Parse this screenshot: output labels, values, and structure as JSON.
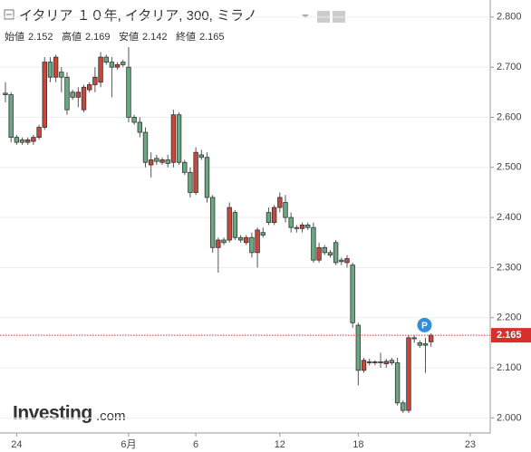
{
  "chart_data": {
    "type": "candlestick",
    "title": "イタリア １０年, イタリア, 300, ミラノ",
    "open_label": "始値",
    "high_label": "高値",
    "low_label": "安値",
    "close_label": "終値",
    "marker_label": "P",
    "logo": "Investing",
    "logo_suffix": ".com",
    "categories": [
      null,
      null,
      "24",
      null,
      null,
      null,
      null,
      null,
      null,
      null,
      null,
      null,
      null,
      null,
      null,
      null,
      null,
      null,
      null,
      null,
      null,
      null,
      "6月",
      null,
      null,
      null,
      null,
      null,
      null,
      null,
      null,
      null,
      null,
      null,
      "6",
      null,
      null,
      null,
      null,
      null,
      null,
      null,
      null,
      null,
      null,
      null,
      null,
      null,
      null,
      "12",
      null,
      null,
      null,
      null,
      null,
      null,
      null,
      null,
      null,
      null,
      null,
      null,
      null,
      "18",
      null,
      null,
      null,
      null,
      null,
      null,
      null,
      null,
      null,
      null,
      null,
      null,
      null,
      null,
      null,
      null,
      null,
      null,
      null,
      "23"
    ],
    "open": [
      2.648,
      2.645,
      2.56,
      2.555,
      2.55,
      2.552,
      2.56,
      2.58,
      2.71,
      2.68,
      2.69,
      2.68,
      2.65,
      2.64,
      2.615,
      2.655,
      2.665,
      2.67,
      2.72,
      2.71,
      2.7,
      2.71,
      2.7,
      2.6,
      2.59,
      2.57,
      2.505,
      2.518,
      2.51,
      2.515,
      2.51,
      2.605,
      2.51,
      2.49,
      2.45,
      2.525,
      2.52,
      2.44,
      2.34,
      2.355,
      2.355,
      2.41,
      2.36,
      2.35,
      2.36,
      2.33,
      2.37,
      2.41,
      2.39,
      2.42,
      2.43,
      2.4,
      2.38,
      2.378,
      2.385,
      2.38,
      2.315,
      2.34,
      2.33,
      2.35,
      2.315,
      2.31,
      2.305,
      2.185,
      2.095,
      2.112,
      2.11,
      2.112,
      2.108,
      2.115,
      2.11,
      2.03,
      2.015,
      2.16,
      2.15,
      2.148,
      2.152,
      null,
      null,
      null,
      null,
      null,
      null,
      null
    ],
    "high": [
      2.67,
      2.65,
      2.565,
      2.56,
      2.56,
      2.565,
      2.585,
      2.72,
      2.72,
      2.725,
      2.7,
      2.69,
      2.655,
      2.66,
      2.665,
      2.67,
      2.7,
      2.73,
      2.725,
      2.72,
      2.71,
      2.715,
      2.74,
      2.605,
      2.6,
      2.58,
      2.53,
      2.525,
      2.52,
      2.525,
      2.615,
      2.61,
      2.515,
      2.5,
      2.54,
      2.535,
      2.53,
      2.445,
      2.36,
      2.36,
      2.43,
      2.415,
      2.365,
      2.365,
      2.37,
      2.38,
      2.38,
      2.42,
      2.425,
      2.45,
      2.445,
      2.41,
      2.385,
      2.39,
      2.39,
      2.39,
      2.35,
      2.345,
      2.335,
      2.355,
      2.32,
      2.325,
      2.31,
      2.19,
      2.12,
      2.118,
      2.115,
      2.13,
      2.118,
      2.12,
      2.12,
      2.035,
      2.165,
      2.165,
      2.155,
      2.16,
      2.169,
      null,
      null,
      null,
      null,
      null,
      null,
      null
    ],
    "low": [
      2.63,
      2.55,
      2.545,
      2.545,
      2.545,
      2.545,
      2.555,
      2.575,
      2.67,
      2.67,
      2.65,
      2.605,
      2.635,
      2.62,
      2.61,
      2.65,
      2.65,
      2.66,
      2.705,
      2.64,
      2.695,
      2.7,
      2.59,
      2.585,
      2.56,
      2.5,
      2.48,
      2.505,
      2.505,
      2.5,
      2.5,
      2.505,
      2.485,
      2.44,
      2.445,
      2.515,
      2.43,
      2.33,
      2.29,
      2.345,
      2.35,
      2.355,
      2.35,
      2.345,
      2.32,
      2.3,
      2.36,
      2.385,
      2.385,
      2.41,
      2.39,
      2.37,
      2.37,
      2.37,
      2.375,
      2.31,
      2.31,
      2.325,
      2.32,
      2.305,
      2.305,
      2.3,
      2.18,
      2.065,
      2.09,
      2.105,
      2.105,
      2.1,
      2.1,
      2.105,
      2.025,
      2.01,
      2.01,
      2.15,
      2.14,
      2.09,
      2.142,
      null,
      null,
      null,
      null,
      null,
      null,
      null
    ],
    "close": [
      2.645,
      2.56,
      2.55,
      2.55,
      2.555,
      2.56,
      2.58,
      2.71,
      2.68,
      2.72,
      2.68,
      2.615,
      2.64,
      2.65,
      2.66,
      2.665,
      2.68,
      2.72,
      2.71,
      2.7,
      2.705,
      2.705,
      2.6,
      2.59,
      2.57,
      2.51,
      2.515,
      2.512,
      2.515,
      2.508,
      2.605,
      2.51,
      2.49,
      2.45,
      2.53,
      2.52,
      2.44,
      2.34,
      2.355,
      2.35,
      2.42,
      2.36,
      2.355,
      2.36,
      2.33,
      2.375,
      2.365,
      2.39,
      2.42,
      2.44,
      2.4,
      2.38,
      2.378,
      2.385,
      2.38,
      2.315,
      2.34,
      2.33,
      2.325,
      2.31,
      2.312,
      2.318,
      2.19,
      2.095,
      2.115,
      2.11,
      2.112,
      2.11,
      2.113,
      2.11,
      2.03,
      2.015,
      2.16,
      2.158,
      2.145,
      2.145,
      2.165,
      null,
      null,
      null,
      null,
      null,
      null,
      null
    ],
    "up_color": "#c8473b",
    "down_color": "#6aa882",
    "last_price_color": "#d6302a",
    "ylim": [
      1.97,
      2.825
    ],
    "yticks": [
      {
        "value": 2.0,
        "label": "2.000"
      },
      {
        "value": 2.1,
        "label": "2.100"
      },
      {
        "value": 2.2,
        "label": "2.200"
      },
      {
        "value": 2.3,
        "label": "2.300"
      },
      {
        "value": 2.4,
        "label": "2.400"
      },
      {
        "value": 2.5,
        "label": "2.500"
      },
      {
        "value": 2.6,
        "label": "2.600"
      },
      {
        "value": 2.7,
        "label": "2.700"
      },
      {
        "value": 2.8,
        "label": "2.800"
      }
    ],
    "grid": true
  }
}
